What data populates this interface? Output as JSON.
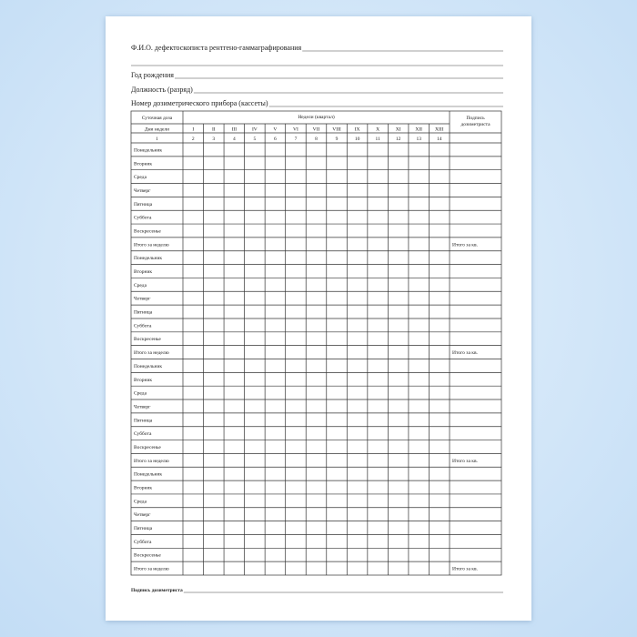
{
  "header": {
    "fio": "Ф.И.О. дефектоскописта рентгено-гаммаграфирования",
    "birth_year": "Год рождения",
    "position": "Должность (разряд)",
    "dosimeter": "Номер дозиметрического прибора (кассеты)"
  },
  "table": {
    "daily_dose": "Суточная доза",
    "days": "Дни недели",
    "weeks": "Недели (квартал)",
    "signature": "Подпись дозиметриста",
    "week_numerals": [
      "I",
      "II",
      "III",
      "IV",
      "V",
      "VI",
      "VII",
      "VIII",
      "IX",
      "X",
      "XI",
      "XII",
      "XIII"
    ],
    "column_numbers": [
      1,
      2,
      3,
      4,
      5,
      6,
      7,
      8,
      9,
      10,
      11,
      12,
      13,
      14
    ],
    "rows": [
      {
        "label": "Понедельник"
      },
      {
        "label": "Вторник"
      },
      {
        "label": "Среда"
      },
      {
        "label": "Четверг"
      },
      {
        "label": "Пятница"
      },
      {
        "label": "Суббота"
      },
      {
        "label": "Воскресенье"
      },
      {
        "label": "Итого за неделю",
        "quarter": "Итого за кв."
      },
      {
        "label": "Понедельник"
      },
      {
        "label": "Вторник"
      },
      {
        "label": "Среда"
      },
      {
        "label": "Четверг"
      },
      {
        "label": "Пятница"
      },
      {
        "label": "Суббота"
      },
      {
        "label": "Воскресенье"
      },
      {
        "label": "Итого за неделю",
        "quarter": "Итого за кв."
      },
      {
        "label": "Понедельник"
      },
      {
        "label": "Вторник"
      },
      {
        "label": "Среда"
      },
      {
        "label": "Четверг"
      },
      {
        "label": "Пятница"
      },
      {
        "label": "Суббота"
      },
      {
        "label": "Воскресенье"
      },
      {
        "label": "Итого за неделю",
        "quarter": "Итого за кв."
      },
      {
        "label": "Понедельник"
      },
      {
        "label": "Вторник"
      },
      {
        "label": "Среда"
      },
      {
        "label": "Четверг"
      },
      {
        "label": "Пятница"
      },
      {
        "label": "Суббота"
      },
      {
        "label": "Воскресенье"
      },
      {
        "label": "Итого за неделю",
        "quarter": "Итого за кв."
      }
    ]
  },
  "footer": {
    "signature": "Подпись дозиметриста"
  }
}
